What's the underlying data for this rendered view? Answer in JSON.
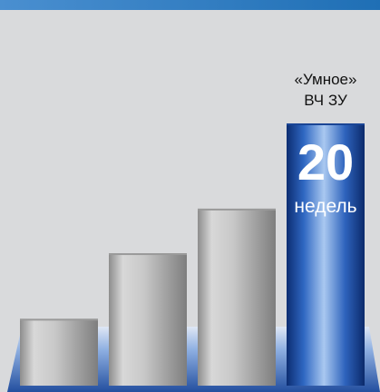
{
  "chart_data": {
    "type": "bar",
    "title": "",
    "xlabel": "",
    "ylabel": "",
    "ylim": [
      0,
      20
    ],
    "categories": [
      "",
      "",
      "",
      "«Умное» ВЧ ЗУ"
    ],
    "values": [
      5.1,
      10.1,
      13.5,
      20
    ],
    "highlight": {
      "label_line1": "«Умное»",
      "label_line2": "ВЧ ЗУ",
      "value_text": "20",
      "unit_text": "недель"
    },
    "grid": false,
    "legend": "none"
  },
  "colors": {
    "background": "#d9dadc",
    "header": "#1f6fb5",
    "bar_gray_light": "#d7d7d7",
    "bar_gray_dark": "#888888",
    "bar_blue_light": "#a8c9f0",
    "bar_blue_dark": "#0d2f73",
    "base": "#2f5fb3"
  }
}
